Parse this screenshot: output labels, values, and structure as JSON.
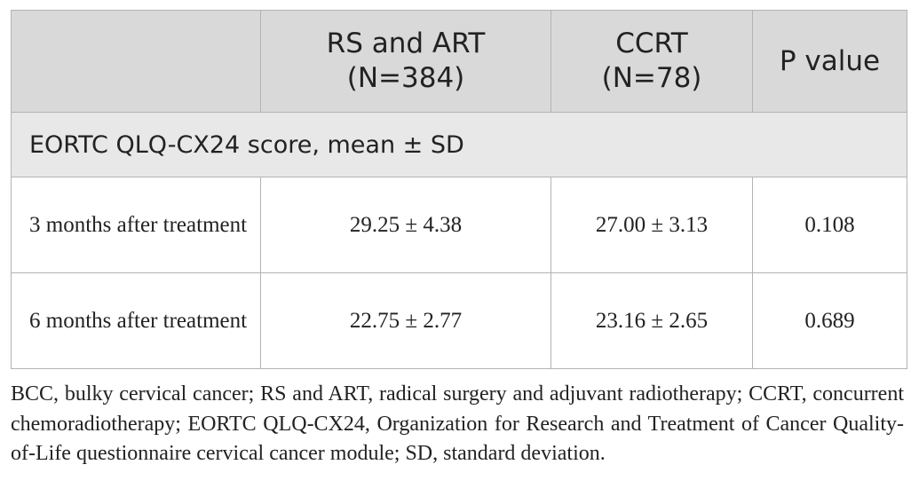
{
  "table": {
    "columns": [
      "",
      "RS and ART\n(N=384)",
      "CCRT\n(N=78)",
      "P value"
    ],
    "column_lines": [
      [],
      [
        "RS and ART",
        "(N=384)"
      ],
      [
        "CCRT",
        "(N=78)"
      ],
      [
        "P value"
      ]
    ],
    "section_label": "EORTC QLQ-CX24 score, mean ± SD",
    "rows": [
      {
        "label": "3 months after treatment",
        "cells": [
          "29.25 ± 4.38",
          "27.00 ± 3.13",
          "0.108"
        ]
      },
      {
        "label": "6 months after treatment",
        "cells": [
          "22.75 ± 2.77",
          "23.16 ± 2.65",
          "0.689"
        ]
      }
    ]
  },
  "footnote": "BCC, bulky cervical cancer; RS and ART, radical surgery and adjuvant radiotherapy; CCRT, concurrent chemoradiotherapy; EORTC QLQ-CX24, Organization for Research and Treatment of Cancer Quality-of-Life questionnaire cervical cancer module; SD, standard deviation."
}
